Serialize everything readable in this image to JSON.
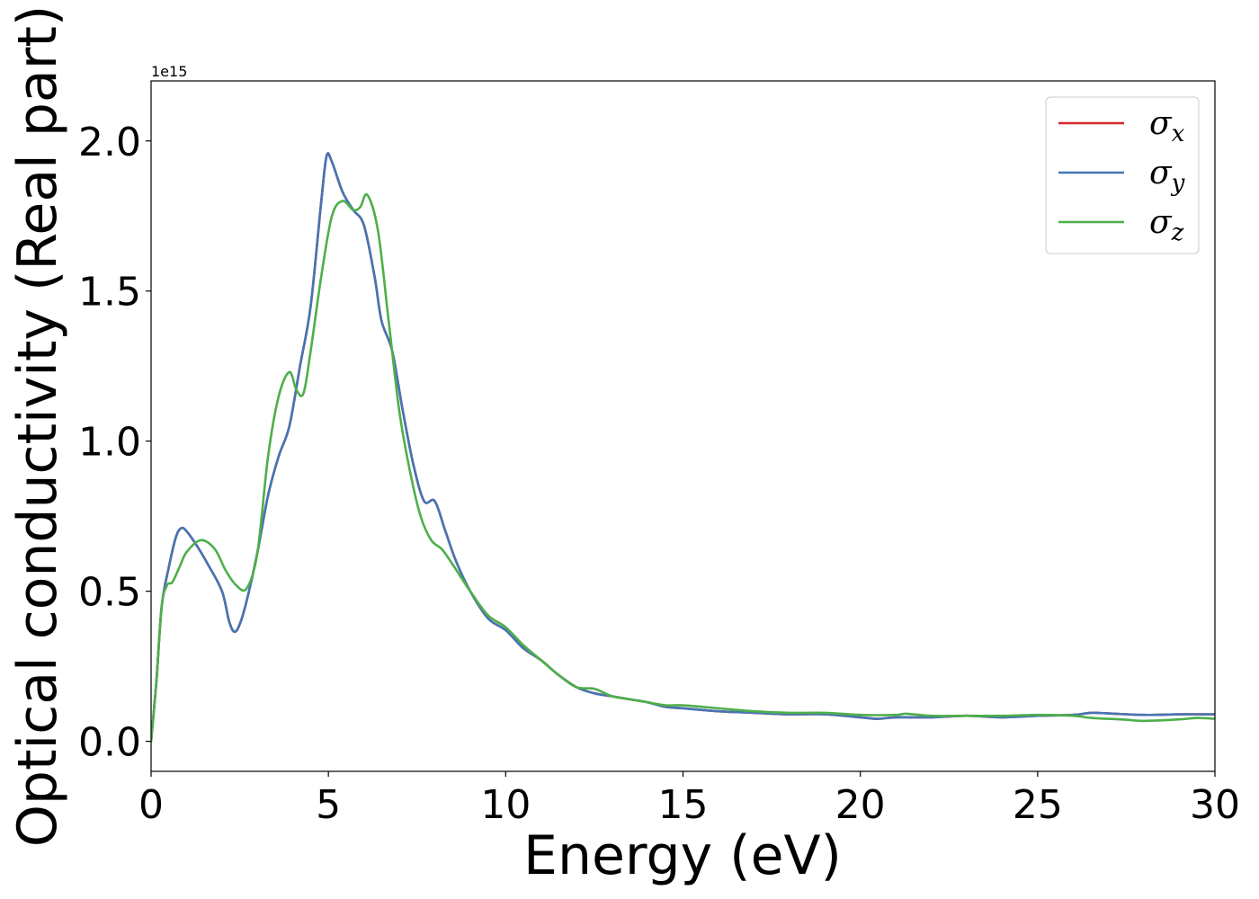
{
  "chart_data": {
    "type": "line",
    "xlabel": "Energy (eV)",
    "ylabel": "Optical conductivity (Real part)",
    "y_offset_label": "1e15",
    "xlim": [
      0,
      30
    ],
    "ylim": [
      -0.1,
      2.2
    ],
    "x_ticks": [
      0,
      5,
      10,
      15,
      20,
      25,
      30
    ],
    "x_tick_labels": [
      "0",
      "5",
      "10",
      "15",
      "20",
      "25",
      "30"
    ],
    "y_ticks": [
      0.0,
      0.5,
      1.0,
      1.5,
      2.0
    ],
    "y_tick_labels": [
      "0.0",
      "0.5",
      "1.0",
      "1.5",
      "2.0"
    ],
    "grid": false,
    "legend_position": "top-right",
    "series": [
      {
        "name": "σx",
        "base": "σ",
        "sub": "x",
        "color": "#d62728",
        "points": [
          [
            0,
            0
          ],
          [
            0.15,
            0.2
          ],
          [
            0.3,
            0.45
          ],
          [
            0.5,
            0.58
          ],
          [
            0.7,
            0.68
          ],
          [
            0.85,
            0.71
          ],
          [
            1.0,
            0.7
          ],
          [
            1.3,
            0.65
          ],
          [
            1.6,
            0.59
          ],
          [
            2.0,
            0.5
          ],
          [
            2.2,
            0.4
          ],
          [
            2.35,
            0.365
          ],
          [
            2.5,
            0.39
          ],
          [
            2.7,
            0.47
          ],
          [
            3.0,
            0.63
          ],
          [
            3.3,
            0.82
          ],
          [
            3.6,
            0.95
          ],
          [
            3.9,
            1.05
          ],
          [
            4.2,
            1.25
          ],
          [
            4.5,
            1.45
          ],
          [
            4.8,
            1.8
          ],
          [
            4.95,
            1.95
          ],
          [
            5.1,
            1.93
          ],
          [
            5.4,
            1.83
          ],
          [
            5.7,
            1.77
          ],
          [
            6.0,
            1.72
          ],
          [
            6.3,
            1.55
          ],
          [
            6.5,
            1.4
          ],
          [
            6.8,
            1.3
          ],
          [
            7.1,
            1.1
          ],
          [
            7.4,
            0.92
          ],
          [
            7.7,
            0.8
          ],
          [
            8.0,
            0.8
          ],
          [
            8.3,
            0.7
          ],
          [
            8.6,
            0.6
          ],
          [
            9.0,
            0.5
          ],
          [
            9.5,
            0.41
          ],
          [
            10.0,
            0.37
          ],
          [
            10.5,
            0.31
          ],
          [
            11.0,
            0.27
          ],
          [
            11.5,
            0.22
          ],
          [
            12.0,
            0.18
          ],
          [
            12.5,
            0.16
          ],
          [
            13.0,
            0.15
          ],
          [
            13.5,
            0.14
          ],
          [
            14.0,
            0.13
          ],
          [
            14.5,
            0.115
          ],
          [
            15.0,
            0.11
          ],
          [
            16.0,
            0.1
          ],
          [
            17.0,
            0.095
          ],
          [
            18.0,
            0.09
          ],
          [
            19.0,
            0.09
          ],
          [
            20.0,
            0.08
          ],
          [
            20.5,
            0.075
          ],
          [
            21.0,
            0.08
          ],
          [
            22.0,
            0.08
          ],
          [
            23.0,
            0.085
          ],
          [
            24.0,
            0.08
          ],
          [
            25.0,
            0.085
          ],
          [
            26.0,
            0.088
          ],
          [
            26.5,
            0.095
          ],
          [
            27.0,
            0.093
          ],
          [
            28.0,
            0.088
          ],
          [
            29.0,
            0.09
          ],
          [
            30.0,
            0.09
          ]
        ]
      },
      {
        "name": "σy",
        "base": "σ",
        "sub": "y",
        "color": "#4575b4",
        "points": [
          [
            0,
            0
          ],
          [
            0.15,
            0.2
          ],
          [
            0.3,
            0.45
          ],
          [
            0.5,
            0.58
          ],
          [
            0.7,
            0.68
          ],
          [
            0.85,
            0.71
          ],
          [
            1.0,
            0.7
          ],
          [
            1.3,
            0.65
          ],
          [
            1.6,
            0.59
          ],
          [
            2.0,
            0.5
          ],
          [
            2.2,
            0.4
          ],
          [
            2.35,
            0.365
          ],
          [
            2.5,
            0.39
          ],
          [
            2.7,
            0.47
          ],
          [
            3.0,
            0.63
          ],
          [
            3.3,
            0.82
          ],
          [
            3.6,
            0.95
          ],
          [
            3.9,
            1.05
          ],
          [
            4.2,
            1.25
          ],
          [
            4.5,
            1.45
          ],
          [
            4.8,
            1.8
          ],
          [
            4.95,
            1.95
          ],
          [
            5.1,
            1.93
          ],
          [
            5.4,
            1.83
          ],
          [
            5.7,
            1.77
          ],
          [
            6.0,
            1.72
          ],
          [
            6.3,
            1.55
          ],
          [
            6.5,
            1.4
          ],
          [
            6.8,
            1.3
          ],
          [
            7.1,
            1.1
          ],
          [
            7.4,
            0.92
          ],
          [
            7.7,
            0.8
          ],
          [
            8.0,
            0.8
          ],
          [
            8.3,
            0.7
          ],
          [
            8.6,
            0.6
          ],
          [
            9.0,
            0.5
          ],
          [
            9.5,
            0.41
          ],
          [
            10.0,
            0.37
          ],
          [
            10.5,
            0.31
          ],
          [
            11.0,
            0.27
          ],
          [
            11.5,
            0.22
          ],
          [
            12.0,
            0.18
          ],
          [
            12.5,
            0.16
          ],
          [
            13.0,
            0.15
          ],
          [
            13.5,
            0.14
          ],
          [
            14.0,
            0.13
          ],
          [
            14.5,
            0.115
          ],
          [
            15.0,
            0.11
          ],
          [
            16.0,
            0.1
          ],
          [
            17.0,
            0.095
          ],
          [
            18.0,
            0.09
          ],
          [
            19.0,
            0.09
          ],
          [
            20.0,
            0.08
          ],
          [
            20.5,
            0.075
          ],
          [
            21.0,
            0.08
          ],
          [
            22.0,
            0.08
          ],
          [
            23.0,
            0.085
          ],
          [
            24.0,
            0.08
          ],
          [
            25.0,
            0.085
          ],
          [
            26.0,
            0.088
          ],
          [
            26.5,
            0.095
          ],
          [
            27.0,
            0.093
          ],
          [
            28.0,
            0.088
          ],
          [
            29.0,
            0.09
          ],
          [
            30.0,
            0.09
          ]
        ]
      },
      {
        "name": "σz",
        "base": "σ",
        "sub": "z",
        "color": "#4daf4a",
        "points": [
          [
            0,
            0
          ],
          [
            0.15,
            0.2
          ],
          [
            0.3,
            0.45
          ],
          [
            0.45,
            0.52
          ],
          [
            0.6,
            0.53
          ],
          [
            0.8,
            0.58
          ],
          [
            1.0,
            0.63
          ],
          [
            1.4,
            0.67
          ],
          [
            1.8,
            0.64
          ],
          [
            2.1,
            0.57
          ],
          [
            2.4,
            0.52
          ],
          [
            2.7,
            0.51
          ],
          [
            3.0,
            0.63
          ],
          [
            3.3,
            0.95
          ],
          [
            3.6,
            1.15
          ],
          [
            3.9,
            1.23
          ],
          [
            4.1,
            1.17
          ],
          [
            4.3,
            1.16
          ],
          [
            4.5,
            1.3
          ],
          [
            4.8,
            1.55
          ],
          [
            5.1,
            1.75
          ],
          [
            5.4,
            1.8
          ],
          [
            5.7,
            1.77
          ],
          [
            5.9,
            1.78
          ],
          [
            6.1,
            1.82
          ],
          [
            6.4,
            1.7
          ],
          [
            6.7,
            1.4
          ],
          [
            7.0,
            1.1
          ],
          [
            7.3,
            0.9
          ],
          [
            7.6,
            0.75
          ],
          [
            7.9,
            0.67
          ],
          [
            8.2,
            0.64
          ],
          [
            8.5,
            0.59
          ],
          [
            9.0,
            0.5
          ],
          [
            9.5,
            0.42
          ],
          [
            10.0,
            0.38
          ],
          [
            10.5,
            0.32
          ],
          [
            11.0,
            0.27
          ],
          [
            11.5,
            0.22
          ],
          [
            12.0,
            0.18
          ],
          [
            12.5,
            0.175
          ],
          [
            13.0,
            0.15
          ],
          [
            13.5,
            0.14
          ],
          [
            14.0,
            0.13
          ],
          [
            14.5,
            0.12
          ],
          [
            15.0,
            0.12
          ],
          [
            16.0,
            0.11
          ],
          [
            17.0,
            0.1
          ],
          [
            18.0,
            0.095
          ],
          [
            19.0,
            0.095
          ],
          [
            20.0,
            0.088
          ],
          [
            21.0,
            0.088
          ],
          [
            21.3,
            0.092
          ],
          [
            22.0,
            0.085
          ],
          [
            23.0,
            0.085
          ],
          [
            24.0,
            0.085
          ],
          [
            25.0,
            0.088
          ],
          [
            26.0,
            0.085
          ],
          [
            26.5,
            0.078
          ],
          [
            27.0,
            0.075
          ],
          [
            27.5,
            0.072
          ],
          [
            28.0,
            0.068
          ],
          [
            29.0,
            0.073
          ],
          [
            29.5,
            0.078
          ],
          [
            30.0,
            0.075
          ]
        ]
      }
    ]
  }
}
